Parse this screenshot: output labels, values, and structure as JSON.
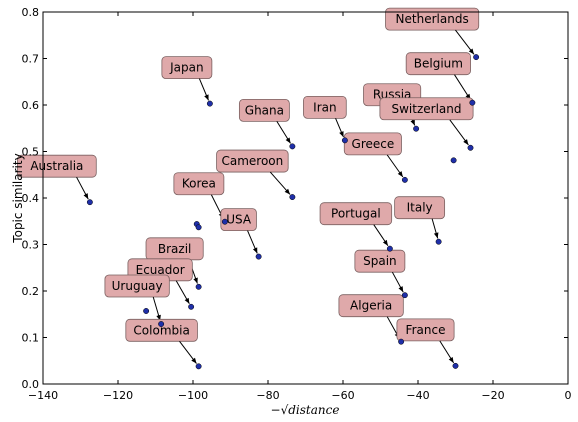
{
  "chart_data": {
    "type": "scatter",
    "xlabel": "−√distance",
    "ylabel": "Topic similarity",
    "xlim": [
      -140,
      0
    ],
    "ylim": [
      0.0,
      0.8
    ],
    "grid": false,
    "x_ticks": [
      -140,
      -120,
      -100,
      -80,
      -60,
      -40,
      -20,
      0
    ],
    "x_tick_labels": [
      "−140",
      "−120",
      "−100",
      "−80",
      "−60",
      "−40",
      "−20",
      "0"
    ],
    "y_ticks": [
      0.0,
      0.1,
      0.2,
      0.3,
      0.4,
      0.5,
      0.6,
      0.7,
      0.8
    ],
    "y_tick_labels": [
      "0.0",
      "0.1",
      "0.2",
      "0.3",
      "0.4",
      "0.5",
      "0.6",
      "0.7",
      "0.8"
    ],
    "points": [
      {
        "label": "Netherlands",
        "x": -24.5,
        "y": 0.703
      },
      {
        "label": "Belgium",
        "x": -25.5,
        "y": 0.605
      },
      {
        "label": "Russia",
        "x": -40.5,
        "y": 0.549
      },
      {
        "label": "Switzerland",
        "x": -26.0,
        "y": 0.508
      },
      {
        "label": "Iran",
        "x": -59.5,
        "y": 0.524
      },
      {
        "label": "Greece",
        "x": -43.5,
        "y": 0.439
      },
      {
        "label": "Japan",
        "x": -95.5,
        "y": 0.603
      },
      {
        "label": "Ghana",
        "x": -73.5,
        "y": 0.511
      },
      {
        "label": "Cameroon",
        "x": -73.5,
        "y": 0.402
      },
      {
        "label": "Korea",
        "x": -91.5,
        "y": 0.349
      },
      {
        "label": "USA",
        "x": -82.5,
        "y": 0.274
      },
      {
        "label": "Australia",
        "x": -127.5,
        "y": 0.391
      },
      {
        "label": "Portugal",
        "x": -47.5,
        "y": 0.291
      },
      {
        "label": "Italy",
        "x": -34.5,
        "y": 0.306
      },
      {
        "label": "Spain",
        "x": -43.5,
        "y": 0.191
      },
      {
        "label": "Brazil",
        "x": -98.5,
        "y": 0.209
      },
      {
        "label": "Ecuador",
        "x": -100.5,
        "y": 0.166
      },
      {
        "label": "Uruguay",
        "x": -108.5,
        "y": 0.129
      },
      {
        "label": "Colombia",
        "x": -98.5,
        "y": 0.038
      },
      {
        "label": "Algeria",
        "x": -44.5,
        "y": 0.091
      },
      {
        "label": "France",
        "x": -30.0,
        "y": 0.039
      },
      {
        "label": "",
        "x": -30.5,
        "y": 0.481
      },
      {
        "label": "",
        "x": -99.0,
        "y": 0.344
      },
      {
        "label": "",
        "x": -98.5,
        "y": 0.337
      },
      {
        "label": "",
        "x": -112.5,
        "y": 0.157
      }
    ]
  }
}
